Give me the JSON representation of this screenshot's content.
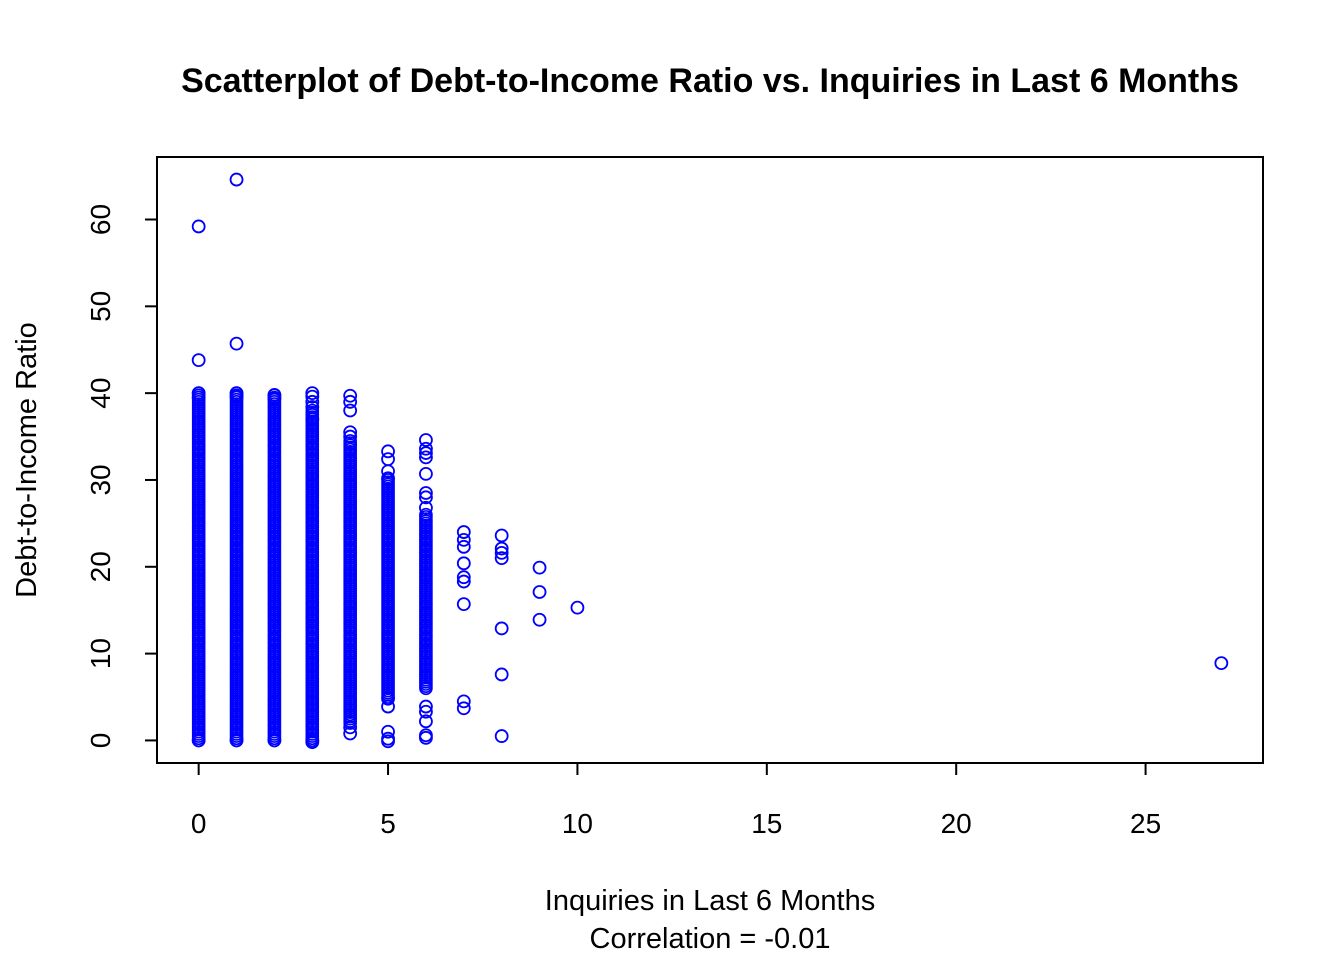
{
  "chart_data": {
    "type": "scatter",
    "title": "Scatterplot of Debt-to-Income Ratio vs. Inquiries in Last 6 Months",
    "xlabel": "Inquiries in Last 6 Months",
    "subtitle": "Correlation = -0.01",
    "ylabel": "Debt-to-Income Ratio",
    "xlim": [
      -1.1,
      28.1
    ],
    "ylim": [
      -2.6,
      67.2
    ],
    "x_ticks": [
      0,
      5,
      10,
      15,
      20,
      25
    ],
    "y_ticks": [
      0,
      10,
      20,
      30,
      40,
      50,
      60
    ],
    "grid": false,
    "legend": "none",
    "marker": "open-circle",
    "colors": {
      "points": "#0000ff",
      "frame": "#000000"
    },
    "dense_columns": [
      {
        "x": 0,
        "y_min": 0,
        "y_max": 40
      },
      {
        "x": 1,
        "y_min": 0,
        "y_max": 40
      },
      {
        "x": 2,
        "y_min": 0,
        "y_max": 39.8
      },
      {
        "x": 3,
        "y_min": 0,
        "y_max": 38
      },
      {
        "x": 4,
        "y_min": 2,
        "y_max": 34.5
      },
      {
        "x": 5,
        "y_min": 5,
        "y_max": 30
      },
      {
        "x": 6,
        "y_min": 6,
        "y_max": 26
      }
    ],
    "points": [
      {
        "x": 0,
        "y": 59.2
      },
      {
        "x": 0,
        "y": 43.8
      },
      {
        "x": 0,
        "y": 40.0
      },
      {
        "x": 0,
        "y": 39.5
      },
      {
        "x": 0,
        "y": 0.0
      },
      {
        "x": 1,
        "y": 64.6
      },
      {
        "x": 1,
        "y": 45.7
      },
      {
        "x": 1,
        "y": 40.0
      },
      {
        "x": 1,
        "y": 39.6
      },
      {
        "x": 1,
        "y": 0.0
      },
      {
        "x": 2,
        "y": 39.8
      },
      {
        "x": 2,
        "y": 39.4
      },
      {
        "x": 2,
        "y": 0.0
      },
      {
        "x": 3,
        "y": 40.0
      },
      {
        "x": 3,
        "y": 39.6
      },
      {
        "x": 3,
        "y": 39.0
      },
      {
        "x": 3,
        "y": 38.4
      },
      {
        "x": 3,
        "y": 37.0
      },
      {
        "x": 3,
        "y": 0.0
      },
      {
        "x": 3,
        "y": -0.2
      },
      {
        "x": 4,
        "y": 39.7
      },
      {
        "x": 4,
        "y": 39.0
      },
      {
        "x": 4,
        "y": 38.0
      },
      {
        "x": 4,
        "y": 35.5
      },
      {
        "x": 4,
        "y": 35.0
      },
      {
        "x": 4,
        "y": 1.5
      },
      {
        "x": 4,
        "y": 0.8
      },
      {
        "x": 5,
        "y": 33.3
      },
      {
        "x": 5,
        "y": 32.4
      },
      {
        "x": 5,
        "y": 31.0
      },
      {
        "x": 5,
        "y": 30.2
      },
      {
        "x": 5,
        "y": 4.8
      },
      {
        "x": 5,
        "y": 3.9
      },
      {
        "x": 5,
        "y": 1.0
      },
      {
        "x": 5,
        "y": 0.2
      },
      {
        "x": 5,
        "y": -0.1
      },
      {
        "x": 6,
        "y": 34.6
      },
      {
        "x": 6,
        "y": 33.6
      },
      {
        "x": 6,
        "y": 33.1
      },
      {
        "x": 6,
        "y": 32.6
      },
      {
        "x": 6,
        "y": 30.7
      },
      {
        "x": 6,
        "y": 28.5
      },
      {
        "x": 6,
        "y": 28.0
      },
      {
        "x": 6,
        "y": 26.8
      },
      {
        "x": 6,
        "y": 3.9
      },
      {
        "x": 6,
        "y": 3.3
      },
      {
        "x": 6,
        "y": 2.2
      },
      {
        "x": 6,
        "y": 0.6
      },
      {
        "x": 6,
        "y": 0.3
      },
      {
        "x": 7,
        "y": 24.0
      },
      {
        "x": 7,
        "y": 23.1
      },
      {
        "x": 7,
        "y": 22.3
      },
      {
        "x": 7,
        "y": 20.4
      },
      {
        "x": 7,
        "y": 18.8
      },
      {
        "x": 7,
        "y": 18.3
      },
      {
        "x": 7,
        "y": 15.7
      },
      {
        "x": 7,
        "y": 4.5
      },
      {
        "x": 7,
        "y": 3.7
      },
      {
        "x": 8,
        "y": 23.6
      },
      {
        "x": 8,
        "y": 22.1
      },
      {
        "x": 8,
        "y": 21.6
      },
      {
        "x": 8,
        "y": 21.0
      },
      {
        "x": 8,
        "y": 12.9
      },
      {
        "x": 8,
        "y": 7.6
      },
      {
        "x": 8,
        "y": 0.5
      },
      {
        "x": 9,
        "y": 19.9
      },
      {
        "x": 9,
        "y": 17.1
      },
      {
        "x": 9,
        "y": 13.9
      },
      {
        "x": 10,
        "y": 15.3
      },
      {
        "x": 27,
        "y": 8.9
      }
    ]
  }
}
